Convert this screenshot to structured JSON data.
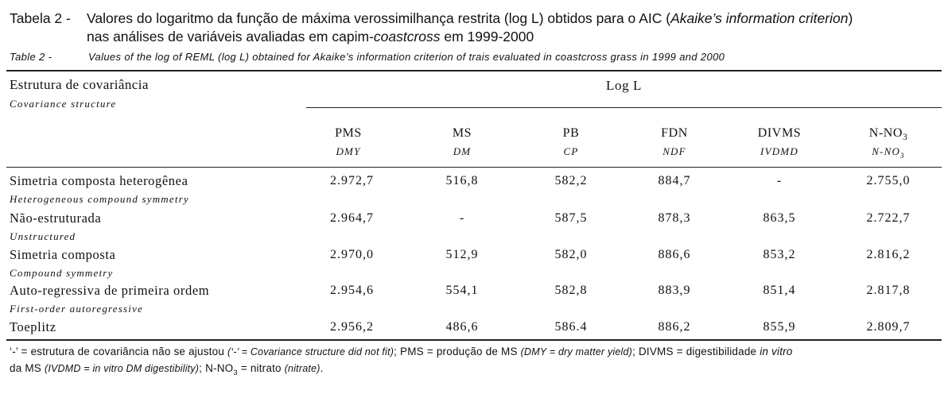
{
  "caption": {
    "pt_label": "Tabela 2 -",
    "pt_line1_a": "Valores do logaritmo da função de máxima verossimilhança restrita (log L) obtidos para o AIC (",
    "pt_line1_italic": "Akaike’s information criterion",
    "pt_line1_b": ")",
    "pt_line2_a": "nas análises de variáveis avaliadas em capim-",
    "pt_line2_italic": "coastcross",
    "pt_line2_b": " em 1999-2000",
    "en_label": "Table 2 -",
    "en_text": "Values of the log of REML (log L) obtained for Akaike’s information criterion of trais evaluated in coastcross grass in 1999 and 2000"
  },
  "table": {
    "structure_header": "Estrutura de covariância",
    "structure_header_en": "Covariance structure",
    "group_header": "Log L",
    "columns": [
      {
        "pt": "PMS",
        "en": "DMY"
      },
      {
        "pt": "MS",
        "en": "DM"
      },
      {
        "pt": "PB",
        "en": "CP"
      },
      {
        "pt": "FDN",
        "en": "NDF"
      },
      {
        "pt": "DIVMS",
        "en": "IVDMD"
      },
      {
        "pt": "N-NO",
        "pt_sub": "3",
        "en": "N-NO",
        "en_sub": "3"
      }
    ],
    "rows": [
      {
        "pt": "Simetria composta heterogênea",
        "en": "Heterogeneous compound symmetry",
        "values": [
          "2.972,7",
          "516,8",
          "582,2",
          "884,7",
          "-",
          "2.755,0"
        ]
      },
      {
        "pt": "Não-estruturada",
        "en": "Unstructured",
        "values": [
          "2.964,7",
          "-",
          "587,5",
          "878,3",
          "863,5",
          "2.722,7"
        ]
      },
      {
        "pt": "Simetria composta",
        "en": "Compound symmetry",
        "values": [
          "2.970,0",
          "512,9",
          "582,0",
          "886,6",
          "853,2",
          "2.816,2"
        ]
      },
      {
        "pt": "Auto-regressiva de primeira ordem",
        "en": "First-order autoregressive",
        "values": [
          "2.954,6",
          "554,1",
          "582,8",
          "883,9",
          "851,4",
          "2.817,8"
        ]
      },
      {
        "pt": "Toeplitz",
        "en": "",
        "values": [
          "2.956,2",
          "486,6",
          "586.4",
          "886,2",
          "855,9",
          "2.809,7"
        ]
      }
    ]
  },
  "footnote": {
    "f1": "‘-’ = estrutura de covariância não se ajustou ",
    "f2": "(‘-’ = Covariance structure did not fit)",
    "f3": "; PMS = produção de MS ",
    "f4": "(DMY = dry matter yield)",
    "f5": "; DIVMS = digestibilidade ",
    "f6": "in vitro",
    "f7": "da MS ",
    "f8": "(IVDMD = in vitro DM digestibility)",
    "f9": ";  N-NO",
    "f9_sub": "3",
    "f10": " = nitrato ",
    "f11": "(nitrate)",
    "f12": "."
  }
}
